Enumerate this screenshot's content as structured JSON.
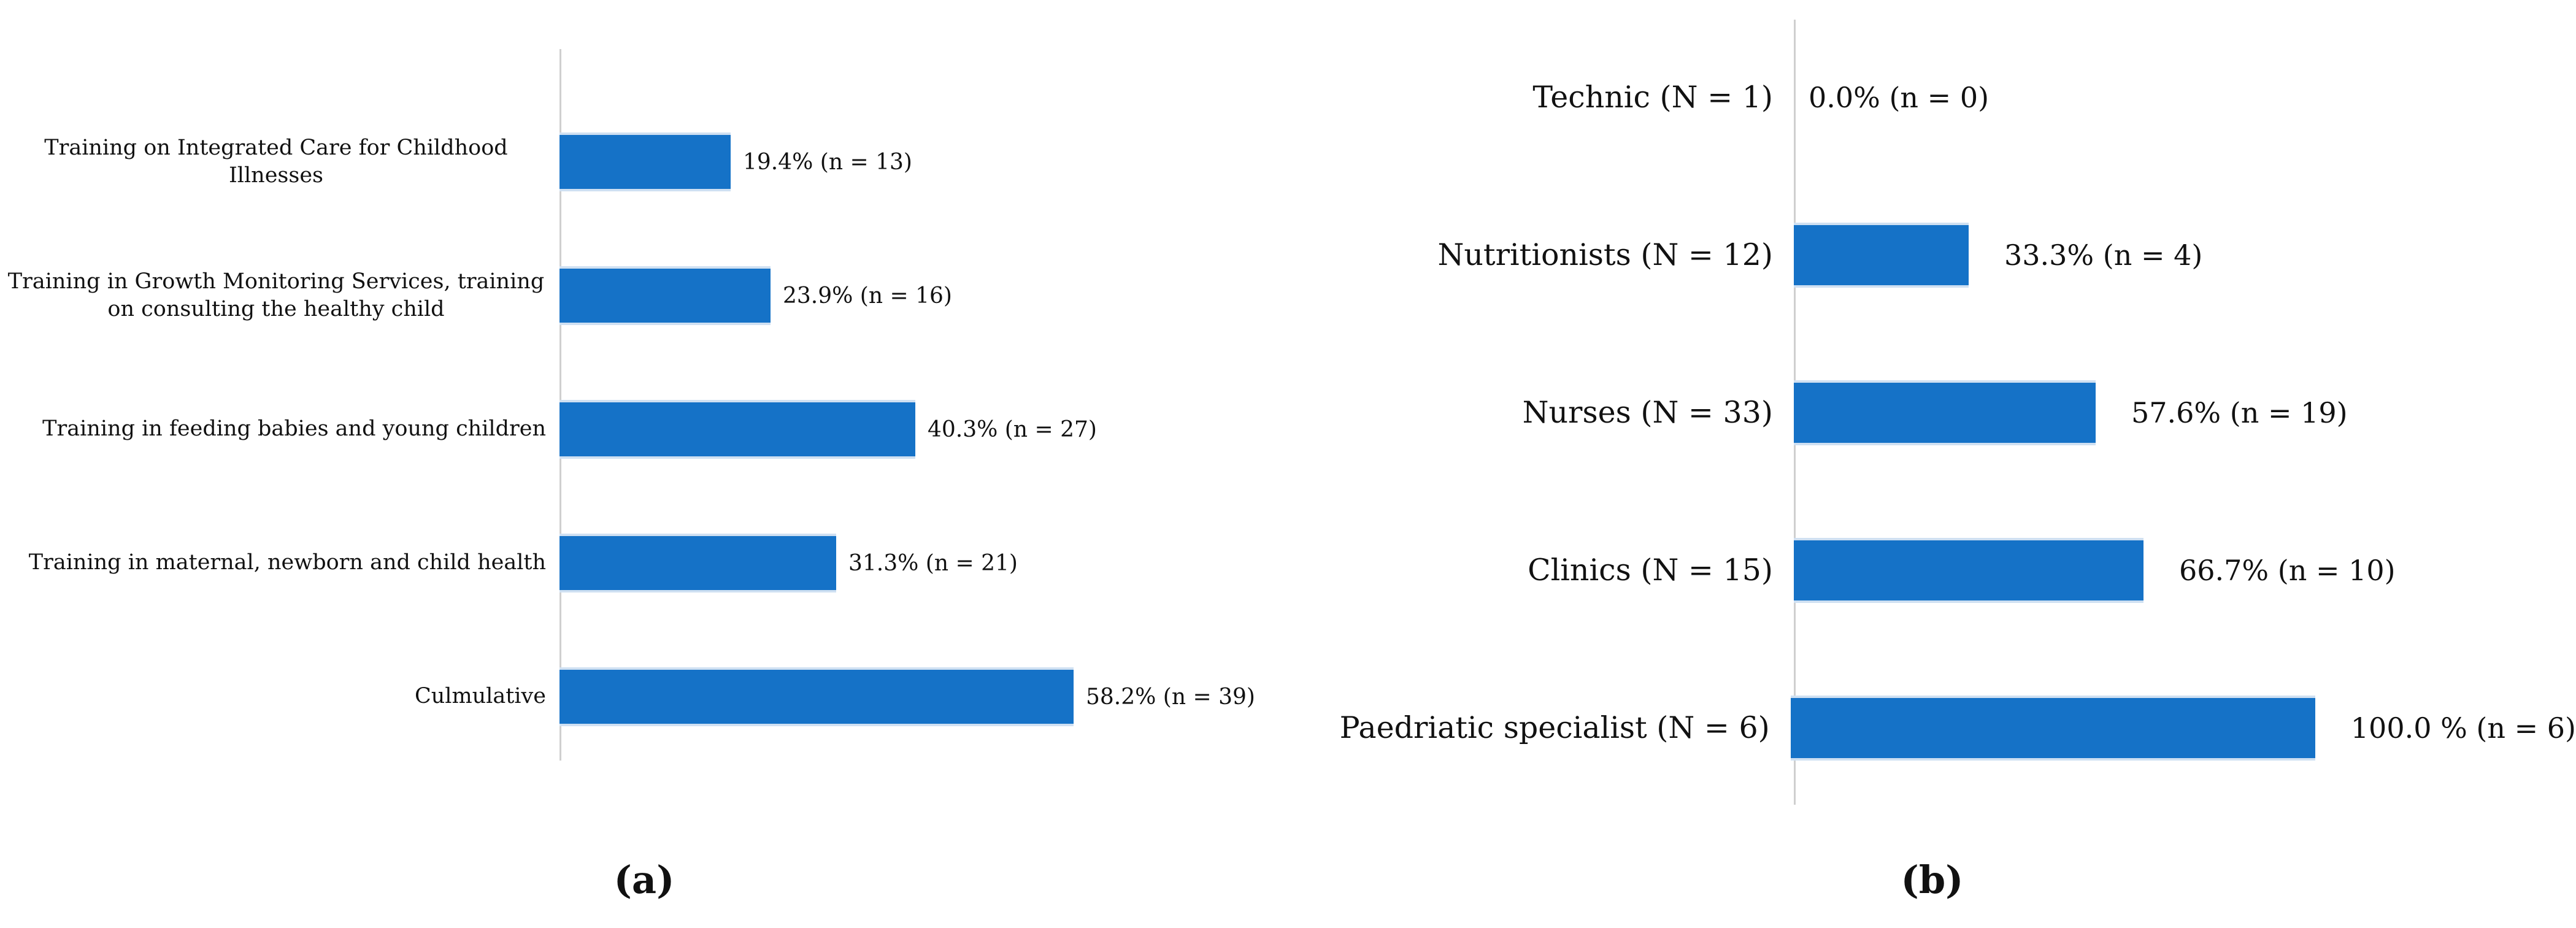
{
  "figure": {
    "background": "#ffffff"
  },
  "colors": {
    "bar_fill": "#1572C7",
    "bar_edge_highlight": "#cfe0f2",
    "axis_line": "#cfcfcf",
    "text": "#111111"
  },
  "captions": {
    "panel_a": "(a)",
    "panel_b": "(b)"
  },
  "chart_data": [
    {
      "id": "a",
      "type": "bar",
      "orientation": "horizontal",
      "title": "",
      "xlabel": "",
      "ylabel": "",
      "grid": false,
      "legend": false,
      "xlim": [
        0,
        60
      ],
      "categories": [
        "Training on Integrated Care for Childhood Illnesses",
        "Training in Growth Monitoring Services, training on consulting the healthy child",
        "Training in feeding babies and young children",
        "Training in maternal, newborn and child health",
        "Culmulative"
      ],
      "values": [
        19.4,
        23.9,
        40.3,
        31.3,
        58.2
      ],
      "counts": [
        13,
        16,
        27,
        21,
        39
      ],
      "value_labels": [
        "19.4% (n = 13)",
        "23.9% (n = 16)",
        "40.3% (n = 27)",
        "31.3% (n = 21)",
        "58.2% (n = 39)"
      ]
    },
    {
      "id": "b",
      "type": "bar",
      "orientation": "horizontal",
      "title": "",
      "xlabel": "",
      "ylabel": "",
      "grid": false,
      "legend": false,
      "xlim": [
        0,
        100
      ],
      "categories": [
        "Technic (N = 1)",
        "Nutritionists (N = 12)",
        "Nurses (N = 33)",
        "Clinics (N = 15)",
        "Paedriatic specialist (N = 6)"
      ],
      "values": [
        0.0,
        33.3,
        57.6,
        66.7,
        100.0
      ],
      "counts": [
        0,
        4,
        19,
        10,
        6
      ],
      "value_labels": [
        "0.0% (n = 0)",
        "33.3% (n = 4)",
        "57.6% (n = 19)",
        "66.7% (n = 10)",
        "100.0 % (n = 6)"
      ]
    }
  ]
}
